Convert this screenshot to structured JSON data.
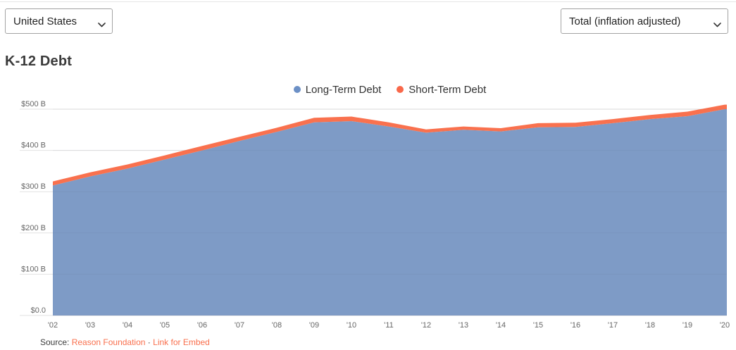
{
  "controls": {
    "region_select": {
      "value": "United States"
    },
    "metric_select": {
      "value": "Total (inflation adjusted)"
    }
  },
  "title": "K-12 Debt",
  "legend": [
    {
      "label": "Long-Term Debt",
      "dot_color": "#6C90C6"
    },
    {
      "label": "Short-Term Debt",
      "dot_color": "#F9684A"
    }
  ],
  "source": {
    "prefix": "Source:",
    "link1": "Reason Foundation",
    "separator": "·",
    "link2": "Link for Embed",
    "link_color": "#F9704E"
  },
  "chart_data": {
    "type": "area",
    "stacked": true,
    "title": "K-12 Debt",
    "unit": "billions of USD (inflation adjusted)",
    "x": [
      "'02",
      "'03",
      "'04",
      "'05",
      "'06",
      "'07",
      "'08",
      "'09",
      "'10",
      "'11",
      "'12",
      "'13",
      "'14",
      "'15",
      "'16",
      "'17",
      "'18",
      "'19",
      "'20"
    ],
    "years": [
      2002,
      2003,
      2004,
      2005,
      2006,
      2007,
      2008,
      2009,
      2010,
      2011,
      2012,
      2013,
      2014,
      2015,
      2016,
      2017,
      2018,
      2019,
      2020
    ],
    "series": [
      {
        "name": "Long-Term Debt",
        "color": "#7E9BC6",
        "values": [
          315,
          337,
          356,
          378,
          400,
          423,
          445,
          468,
          471,
          458,
          443,
          450,
          446,
          456,
          457,
          466,
          476,
          483,
          500
        ]
      },
      {
        "name": "Short-Term Debt",
        "color": "#F9714E",
        "values": [
          10,
          10,
          10,
          10,
          11,
          10,
          10,
          11,
          11,
          10,
          8,
          8,
          8,
          10,
          10,
          10,
          10,
          11,
          11
        ]
      }
    ],
    "totals": [
      325,
      347,
      366,
      388,
      411,
      433,
      455,
      479,
      482,
      468,
      451,
      458,
      454,
      466,
      467,
      476,
      486,
      494,
      511
    ],
    "ylim": [
      0,
      500
    ],
    "yticks": [
      0,
      100,
      200,
      300,
      400,
      500
    ],
    "ytick_labels": [
      "$0.0",
      "$100 B",
      "$200 B",
      "$300 B",
      "$400 B",
      "$500 B"
    ],
    "grid": "horizontal",
    "legend_position": "top-center",
    "colors": {
      "gridline": "#e2e2e2",
      "tick_text": "#666666"
    }
  }
}
